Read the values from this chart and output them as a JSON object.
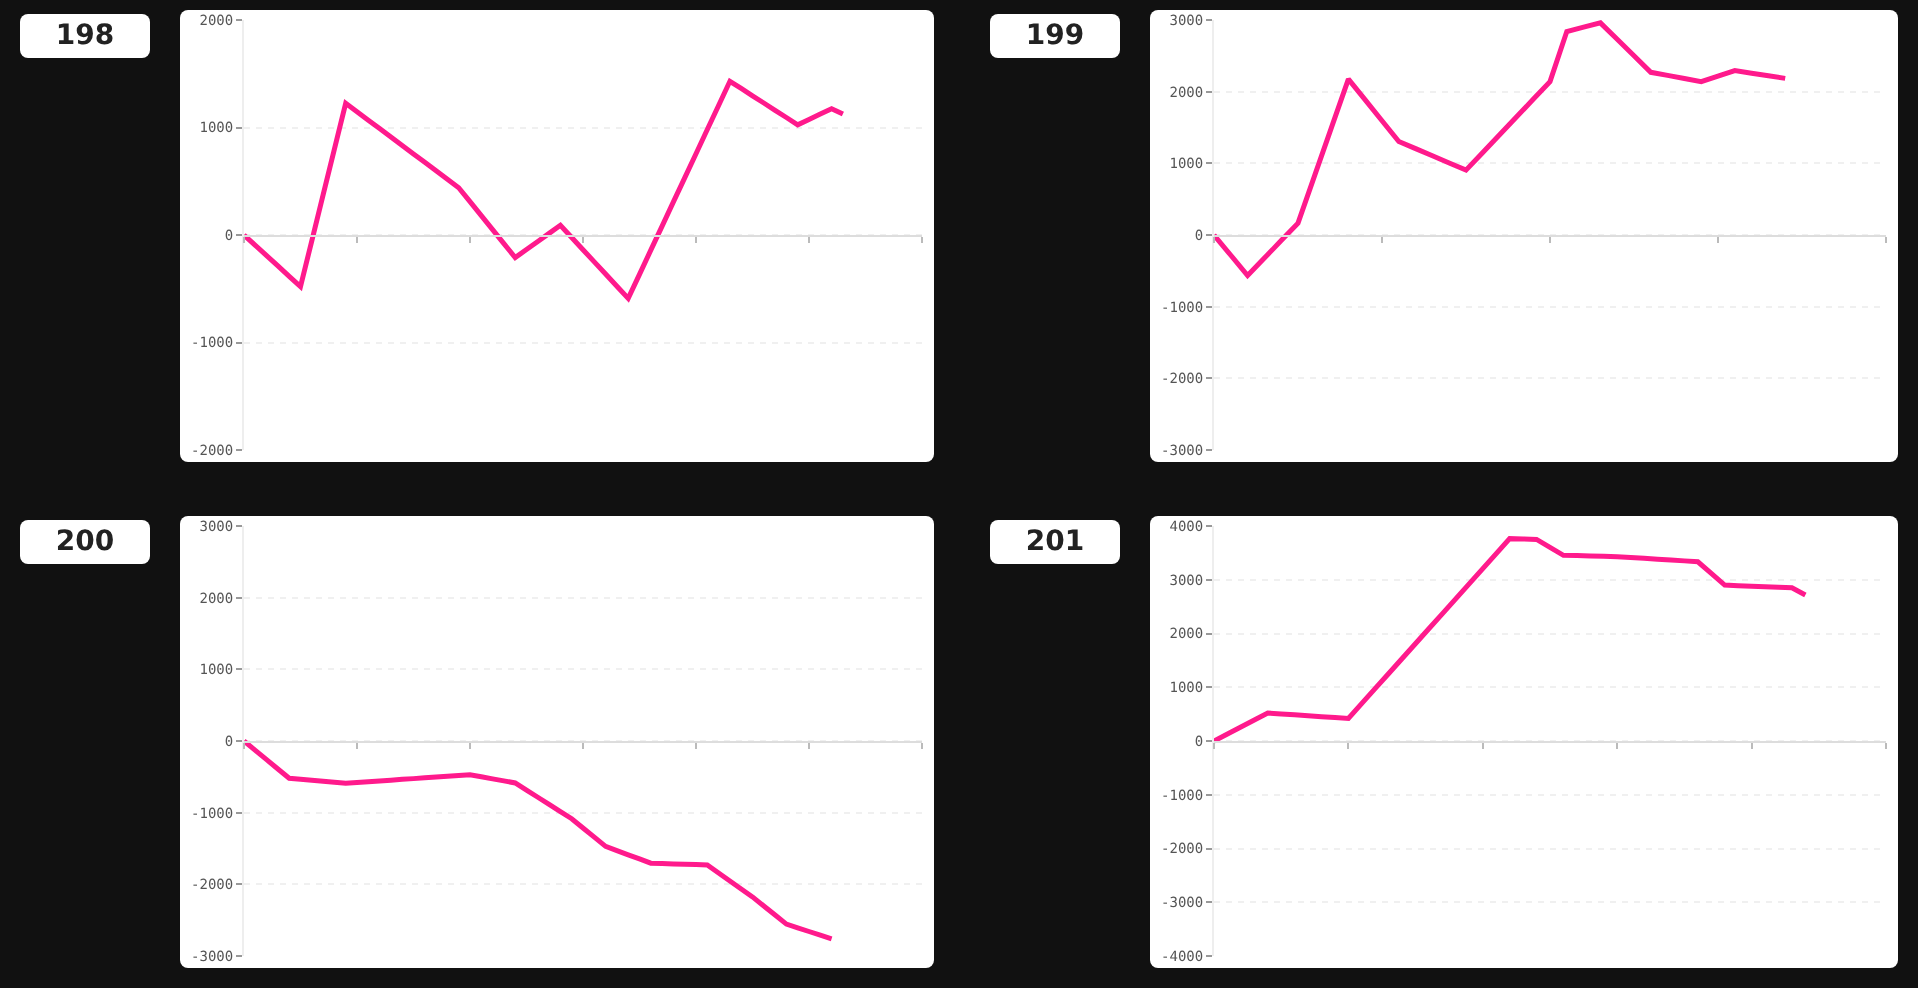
{
  "chart_data": [
    {
      "type": "line",
      "title": "198",
      "categories": [
        null,
        null,
        null,
        null,
        null,
        null,
        null,
        null,
        null,
        null,
        null,
        null,
        null,
        null,
        null,
        null,
        null,
        null,
        null,
        null,
        null,
        null,
        null,
        null,
        null,
        null,
        null,
        null,
        null,
        null,
        null,
        null,
        null,
        null,
        null,
        null,
        null,
        null,
        null,
        null,
        null,
        null,
        null,
        null,
        null,
        null,
        null,
        null,
        null,
        null,
        null,
        null,
        null,
        null,
        null,
        null,
        null,
        null,
        null,
        null,
        null
      ],
      "series": [
        {
          "color": "#ff1a8c",
          "values": [
            0,
            -96,
            -192,
            -288,
            -384,
            -480,
            -54,
            373,
            799,
            1225,
            1147,
            1068,
            990,
            911,
            833,
            754,
            676,
            597,
            519,
            440,
            310,
            180,
            50,
            -80,
            -210,
            -135,
            -60,
            15,
            90,
            -23,
            -137,
            -250,
            -363,
            -477,
            -590,
            -366,
            -141,
            83,
            308,
            532,
            756,
            981,
            1205,
            1430,
            1363,
            1295,
            1228,
            1160,
            1093,
            1025,
            1075,
            1125,
            1175,
            1125,
            null,
            null,
            null,
            null,
            null,
            null,
            null
          ]
        }
      ],
      "ylim": [
        -2000,
        2000
      ],
      "yticks": [
        -2000,
        -1000,
        0,
        1000,
        2000
      ],
      "grid": "y",
      "tick_labels": "y"
    },
    {
      "type": "line",
      "title": "199",
      "categories": [
        null,
        null,
        null,
        null,
        null,
        null,
        null,
        null,
        null,
        null,
        null,
        null,
        null,
        null,
        null,
        null,
        null,
        null,
        null,
        null,
        null,
        null,
        null,
        null,
        null,
        null,
        null,
        null,
        null,
        null,
        null,
        null,
        null,
        null,
        null,
        null,
        null,
        null,
        null,
        null,
        null
      ],
      "series": [
        {
          "color": "#ff1a8c",
          "values": [
            0,
            -283,
            -565,
            -322,
            -78,
            165,
            835,
            1505,
            2175,
            1885,
            1595,
            1305,
            1205,
            1105,
            1005,
            905,
            1152,
            1399,
            1646,
            1893,
            2140,
            2840,
            2900,
            2960,
            2730,
            2500,
            2270,
            2227,
            2183,
            2140,
            2218,
            2295,
            2258,
            2222,
            2185,
            null,
            null,
            null,
            null,
            null,
            null
          ]
        }
      ],
      "ylim": [
        -3000,
        3000
      ],
      "yticks": [
        -3000,
        -2000,
        -1000,
        0,
        1000,
        2000,
        3000
      ],
      "grid": "y",
      "tick_labels": "y"
    },
    {
      "type": "line",
      "title": "200",
      "categories": [
        null,
        null,
        null,
        null,
        null,
        null,
        null,
        null,
        null,
        null,
        null,
        null,
        null,
        null,
        null,
        null,
        null,
        null,
        null,
        null,
        null,
        null,
        null,
        null,
        null,
        null,
        null,
        null,
        null,
        null,
        null,
        null,
        null,
        null,
        null,
        null,
        null,
        null,
        null,
        null,
        null,
        null,
        null,
        null,
        null,
        null,
        null,
        null,
        null,
        null,
        null,
        null,
        null,
        null,
        null,
        null,
        null,
        null,
        null,
        null,
        null
      ],
      "series": [
        {
          "color": "#ff1a8c",
          "values": [
            0,
            -130,
            -260,
            -390,
            -520,
            -534,
            -548,
            -562,
            -576,
            -590,
            -579,
            -568,
            -557,
            -546,
            -535,
            -525,
            -514,
            -503,
            -492,
            -481,
            -470,
            -499,
            -528,
            -556,
            -585,
            -685,
            -785,
            -885,
            -985,
            -1085,
            -1213,
            -1342,
            -1470,
            -1529,
            -1588,
            -1646,
            -1705,
            -1710,
            -1715,
            -1720,
            -1725,
            -1730,
            -1841,
            -1953,
            -2064,
            -2175,
            -2302,
            -2428,
            -2555,
            -2606,
            -2658,
            -2709,
            -2760,
            null,
            null,
            null,
            null,
            null,
            null,
            null,
            null
          ]
        }
      ],
      "ylim": [
        -3000,
        3000
      ],
      "yticks": [
        -3000,
        -2000,
        -1000,
        0,
        1000,
        2000,
        3000
      ],
      "grid": "y",
      "tick_labels": "y"
    },
    {
      "type": "line",
      "title": "201",
      "categories": [
        null,
        null,
        null,
        null,
        null,
        null,
        null,
        null,
        null,
        null,
        null,
        null,
        null,
        null,
        null,
        null,
        null,
        null,
        null,
        null,
        null,
        null,
        null,
        null,
        null,
        null,
        null,
        null,
        null,
        null,
        null,
        null,
        null,
        null,
        null,
        null,
        null,
        null,
        null,
        null,
        null,
        null,
        null,
        null,
        null,
        null,
        null,
        null,
        null,
        null,
        null
      ],
      "series": [
        {
          "color": "#ff1a8c",
          "values": [
            0,
            130,
            260,
            390,
            520,
            503,
            487,
            470,
            453,
            437,
            420,
            699,
            978,
            1256,
            1535,
            1814,
            2093,
            2371,
            2650,
            2929,
            3208,
            3486,
            3765,
            3758,
            3750,
            3603,
            3455,
            3449,
            3443,
            3436,
            3430,
            3414,
            3398,
            3383,
            3367,
            3351,
            3335,
            3118,
            2900,
            2890,
            2880,
            2870,
            2860,
            2850,
            2715,
            null,
            null,
            null,
            null,
            null,
            null
          ]
        }
      ],
      "ylim": [
        -4000,
        4000
      ],
      "yticks": [
        -4000,
        -3000,
        -2000,
        -1000,
        0,
        1000,
        2000,
        3000,
        4000
      ],
      "grid": "y",
      "tick_labels": "y"
    }
  ]
}
